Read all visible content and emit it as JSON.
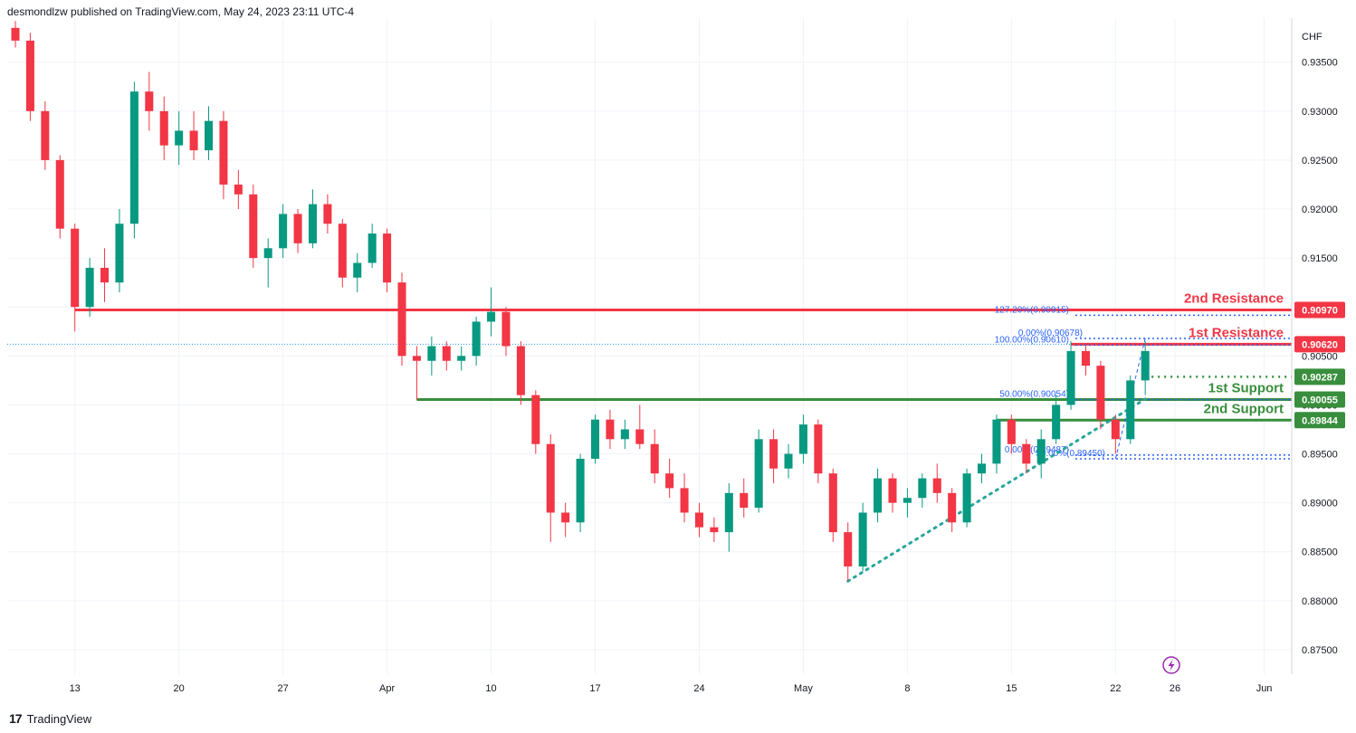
{
  "header": {
    "text": "desmondlzw published on TradingView.com, May 24, 2023 23:11 UTC-4"
  },
  "footer": {
    "brand": "TradingView",
    "logo_text": "17"
  },
  "colors": {
    "up": "#089981",
    "down": "#f23645",
    "resistance": "#f23645",
    "support": "#388e3c",
    "fib": "#2962ff",
    "trend": "#26a69a",
    "grid": "#f0f3fa"
  },
  "chart_data": {
    "type": "candlestick",
    "currency": "CHF",
    "ylim": [
      0.8725,
      0.9395
    ],
    "y_ticks": [
      "0.93500",
      "0.93000",
      "0.92500",
      "0.92000",
      "0.91500",
      "0.91000",
      "0.90500",
      "0.90000",
      "0.89500",
      "0.89000",
      "0.88500",
      "0.88000",
      "0.87500"
    ],
    "y_tick_values": [
      0.935,
      0.93,
      0.925,
      0.92,
      0.915,
      0.91,
      0.905,
      0.9,
      0.895,
      0.89,
      0.885,
      0.88,
      0.875
    ],
    "x_ticks": [
      "13",
      "20",
      "27",
      "Apr",
      "10",
      "17",
      "24",
      "May",
      "8",
      "15",
      "22",
      "26",
      "Jun"
    ],
    "x_tick_dates": [
      "2023-03-13",
      "2023-03-20",
      "2023-03-27",
      "2023-04-03",
      "2023-04-10",
      "2023-04-17",
      "2023-04-24",
      "2023-05-01",
      "2023-05-08",
      "2023-05-15",
      "2023-05-22",
      "2023-05-26",
      "2023-06-01"
    ],
    "last_price": 0.9062,
    "levels": [
      {
        "name": "2nd Resistance",
        "value": 0.9097,
        "tag": "0.90970",
        "kind": "resistance",
        "from": "2023-03-13"
      },
      {
        "name": "1st Resistance",
        "value": 0.9062,
        "tag": "0.90620",
        "kind": "resistance",
        "from": "2023-05-19"
      },
      {
        "name": "",
        "value": 0.90287,
        "tag": "0.90287",
        "kind": "support-dotted",
        "from": "2023-05-24"
      },
      {
        "name": "1st Support",
        "value": 0.90055,
        "tag": "0.90055",
        "kind": "support",
        "from": "2023-04-05"
      },
      {
        "name": "2nd Support",
        "value": 0.89844,
        "tag": "0.89844",
        "kind": "support",
        "from": "2023-05-14"
      }
    ],
    "fib_labels": [
      {
        "text": "127.20%(0.90915)",
        "value": 0.90915
      },
      {
        "text": "0.00%(0.90678)",
        "value": 0.90678
      },
      {
        "text": "100.00%(0.90610)",
        "value": 0.9061
      },
      {
        "text": "50.00%(0.90054)",
        "value": 0.90054
      },
      {
        "text": "0.00%(0.89487)",
        "value": 0.89487
      },
      {
        "text": "50.00%(0.89450)",
        "value": 0.8945
      }
    ],
    "trendline": {
      "from": [
        "2023-05-04",
        0.882
      ],
      "to": [
        "2023-05-24",
        0.9006
      ]
    },
    "candles": [
      {
        "t": "2023-03-09",
        "o": 0.9385,
        "h": 0.9392,
        "l": 0.9365,
        "c": 0.9372
      },
      {
        "t": "2023-03-10",
        "o": 0.9372,
        "h": 0.938,
        "l": 0.929,
        "c": 0.93
      },
      {
        "t": "2023-03-11",
        "o": 0.93,
        "h": 0.931,
        "l": 0.924,
        "c": 0.925
      },
      {
        "t": "2023-03-12",
        "o": 0.925,
        "h": 0.9255,
        "l": 0.917,
        "c": 0.918
      },
      {
        "t": "2023-03-13",
        "o": 0.918,
        "h": 0.9185,
        "l": 0.9075,
        "c": 0.91
      },
      {
        "t": "2023-03-14",
        "o": 0.91,
        "h": 0.915,
        "l": 0.909,
        "c": 0.914
      },
      {
        "t": "2023-03-15",
        "o": 0.914,
        "h": 0.916,
        "l": 0.9105,
        "c": 0.9125
      },
      {
        "t": "2023-03-16",
        "o": 0.9125,
        "h": 0.92,
        "l": 0.9115,
        "c": 0.9185
      },
      {
        "t": "2023-03-17",
        "o": 0.9185,
        "h": 0.933,
        "l": 0.917,
        "c": 0.932
      },
      {
        "t": "2023-03-18",
        "o": 0.932,
        "h": 0.934,
        "l": 0.928,
        "c": 0.93
      },
      {
        "t": "2023-03-19",
        "o": 0.93,
        "h": 0.9315,
        "l": 0.925,
        "c": 0.9265
      },
      {
        "t": "2023-03-20",
        "o": 0.9265,
        "h": 0.93,
        "l": 0.9245,
        "c": 0.928
      },
      {
        "t": "2023-03-21",
        "o": 0.928,
        "h": 0.93,
        "l": 0.925,
        "c": 0.926
      },
      {
        "t": "2023-03-22",
        "o": 0.926,
        "h": 0.9305,
        "l": 0.925,
        "c": 0.929
      },
      {
        "t": "2023-03-23",
        "o": 0.929,
        "h": 0.93,
        "l": 0.921,
        "c": 0.9225
      },
      {
        "t": "2023-03-24",
        "o": 0.9225,
        "h": 0.924,
        "l": 0.92,
        "c": 0.9215
      },
      {
        "t": "2023-03-25",
        "o": 0.9215,
        "h": 0.9225,
        "l": 0.914,
        "c": 0.915
      },
      {
        "t": "2023-03-26",
        "o": 0.915,
        "h": 0.917,
        "l": 0.912,
        "c": 0.916
      },
      {
        "t": "2023-03-27",
        "o": 0.916,
        "h": 0.9205,
        "l": 0.915,
        "c": 0.9195
      },
      {
        "t": "2023-03-28",
        "o": 0.9195,
        "h": 0.92,
        "l": 0.9155,
        "c": 0.9165
      },
      {
        "t": "2023-03-29",
        "o": 0.9165,
        "h": 0.922,
        "l": 0.916,
        "c": 0.9205
      },
      {
        "t": "2023-03-30",
        "o": 0.9205,
        "h": 0.9215,
        "l": 0.9175,
        "c": 0.9185
      },
      {
        "t": "2023-03-31",
        "o": 0.9185,
        "h": 0.919,
        "l": 0.912,
        "c": 0.913
      },
      {
        "t": "2023-04-01",
        "o": 0.913,
        "h": 0.9155,
        "l": 0.9115,
        "c": 0.9145
      },
      {
        "t": "2023-04-02",
        "o": 0.9145,
        "h": 0.9185,
        "l": 0.914,
        "c": 0.9175
      },
      {
        "t": "2023-04-03",
        "o": 0.9175,
        "h": 0.918,
        "l": 0.9115,
        "c": 0.9125
      },
      {
        "t": "2023-04-04",
        "o": 0.9125,
        "h": 0.9135,
        "l": 0.904,
        "c": 0.905
      },
      {
        "t": "2023-04-05",
        "o": 0.905,
        "h": 0.906,
        "l": 0.9005,
        "c": 0.9045
      },
      {
        "t": "2023-04-06",
        "o": 0.9045,
        "h": 0.907,
        "l": 0.903,
        "c": 0.906
      },
      {
        "t": "2023-04-07",
        "o": 0.906,
        "h": 0.9065,
        "l": 0.9035,
        "c": 0.9045
      },
      {
        "t": "2023-04-08",
        "o": 0.9045,
        "h": 0.906,
        "l": 0.9035,
        "c": 0.905
      },
      {
        "t": "2023-04-09",
        "o": 0.905,
        "h": 0.909,
        "l": 0.904,
        "c": 0.9085
      },
      {
        "t": "2023-04-10",
        "o": 0.9085,
        "h": 0.912,
        "l": 0.907,
        "c": 0.9095
      },
      {
        "t": "2023-04-11",
        "o": 0.9095,
        "h": 0.91,
        "l": 0.905,
        "c": 0.906
      },
      {
        "t": "2023-04-12",
        "o": 0.906,
        "h": 0.9065,
        "l": 0.9,
        "c": 0.901
      },
      {
        "t": "2023-04-13",
        "o": 0.901,
        "h": 0.9015,
        "l": 0.895,
        "c": 0.896
      },
      {
        "t": "2023-04-14",
        "o": 0.896,
        "h": 0.897,
        "l": 0.886,
        "c": 0.889
      },
      {
        "t": "2023-04-15",
        "o": 0.889,
        "h": 0.89,
        "l": 0.8865,
        "c": 0.888
      },
      {
        "t": "2023-04-16",
        "o": 0.888,
        "h": 0.895,
        "l": 0.887,
        "c": 0.8945
      },
      {
        "t": "2023-04-17",
        "o": 0.8945,
        "h": 0.899,
        "l": 0.894,
        "c": 0.8985
      },
      {
        "t": "2023-04-18",
        "o": 0.8985,
        "h": 0.8995,
        "l": 0.8955,
        "c": 0.8965
      },
      {
        "t": "2023-04-19",
        "o": 0.8965,
        "h": 0.8985,
        "l": 0.8955,
        "c": 0.8975
      },
      {
        "t": "2023-04-20",
        "o": 0.8975,
        "h": 0.9,
        "l": 0.8955,
        "c": 0.896
      },
      {
        "t": "2023-04-21",
        "o": 0.896,
        "h": 0.8975,
        "l": 0.892,
        "c": 0.893
      },
      {
        "t": "2023-04-22",
        "o": 0.893,
        "h": 0.8945,
        "l": 0.8905,
        "c": 0.8915
      },
      {
        "t": "2023-04-23",
        "o": 0.8915,
        "h": 0.893,
        "l": 0.888,
        "c": 0.889
      },
      {
        "t": "2023-04-24",
        "o": 0.889,
        "h": 0.89,
        "l": 0.8865,
        "c": 0.8875
      },
      {
        "t": "2023-04-25",
        "o": 0.8875,
        "h": 0.8885,
        "l": 0.886,
        "c": 0.887
      },
      {
        "t": "2023-04-26",
        "o": 0.887,
        "h": 0.892,
        "l": 0.885,
        "c": 0.891
      },
      {
        "t": "2023-04-27",
        "o": 0.891,
        "h": 0.8925,
        "l": 0.8885,
        "c": 0.8895
      },
      {
        "t": "2023-04-28",
        "o": 0.8895,
        "h": 0.8975,
        "l": 0.889,
        "c": 0.8965
      },
      {
        "t": "2023-04-29",
        "o": 0.8965,
        "h": 0.8975,
        "l": 0.892,
        "c": 0.8935
      },
      {
        "t": "2023-04-30",
        "o": 0.8935,
        "h": 0.896,
        "l": 0.8925,
        "c": 0.895
      },
      {
        "t": "2023-05-01",
        "o": 0.895,
        "h": 0.899,
        "l": 0.894,
        "c": 0.898
      },
      {
        "t": "2023-05-02",
        "o": 0.898,
        "h": 0.8985,
        "l": 0.892,
        "c": 0.893
      },
      {
        "t": "2023-05-03",
        "o": 0.893,
        "h": 0.8935,
        "l": 0.886,
        "c": 0.887
      },
      {
        "t": "2023-05-04",
        "o": 0.887,
        "h": 0.888,
        "l": 0.882,
        "c": 0.8835
      },
      {
        "t": "2023-05-05",
        "o": 0.8835,
        "h": 0.89,
        "l": 0.883,
        "c": 0.889
      },
      {
        "t": "2023-05-06",
        "o": 0.889,
        "h": 0.8935,
        "l": 0.888,
        "c": 0.8925
      },
      {
        "t": "2023-05-07",
        "o": 0.8925,
        "h": 0.893,
        "l": 0.889,
        "c": 0.89
      },
      {
        "t": "2023-05-08",
        "o": 0.89,
        "h": 0.8915,
        "l": 0.8885,
        "c": 0.8905
      },
      {
        "t": "2023-05-09",
        "o": 0.8905,
        "h": 0.893,
        "l": 0.8895,
        "c": 0.8925
      },
      {
        "t": "2023-05-10",
        "o": 0.8925,
        "h": 0.894,
        "l": 0.89,
        "c": 0.891
      },
      {
        "t": "2023-05-11",
        "o": 0.891,
        "h": 0.8915,
        "l": 0.887,
        "c": 0.888
      },
      {
        "t": "2023-05-12",
        "o": 0.888,
        "h": 0.8935,
        "l": 0.8875,
        "c": 0.893
      },
      {
        "t": "2023-05-13",
        "o": 0.893,
        "h": 0.895,
        "l": 0.892,
        "c": 0.894
      },
      {
        "t": "2023-05-14",
        "o": 0.894,
        "h": 0.899,
        "l": 0.893,
        "c": 0.8985
      },
      {
        "t": "2023-05-15",
        "o": 0.8985,
        "h": 0.899,
        "l": 0.895,
        "c": 0.896
      },
      {
        "t": "2023-05-16",
        "o": 0.896,
        "h": 0.8965,
        "l": 0.893,
        "c": 0.894
      },
      {
        "t": "2023-05-17",
        "o": 0.894,
        "h": 0.8975,
        "l": 0.8925,
        "c": 0.8965
      },
      {
        "t": "2023-05-18",
        "o": 0.8965,
        "h": 0.901,
        "l": 0.896,
        "c": 0.9
      },
      {
        "t": "2023-05-19",
        "o": 0.9,
        "h": 0.9065,
        "l": 0.8995,
        "c": 0.9055
      },
      {
        "t": "2023-05-20",
        "o": 0.9055,
        "h": 0.906,
        "l": 0.903,
        "c": 0.904
      },
      {
        "t": "2023-05-21",
        "o": 0.904,
        "h": 0.9045,
        "l": 0.8975,
        "c": 0.8985
      },
      {
        "t": "2023-05-22",
        "o": 0.8985,
        "h": 0.899,
        "l": 0.895,
        "c": 0.8965
      },
      {
        "t": "2023-05-23",
        "o": 0.8965,
        "h": 0.903,
        "l": 0.896,
        "c": 0.9025
      },
      {
        "t": "2023-05-24",
        "o": 0.9025,
        "h": 0.9065,
        "l": 0.901,
        "c": 0.9055
      }
    ]
  }
}
